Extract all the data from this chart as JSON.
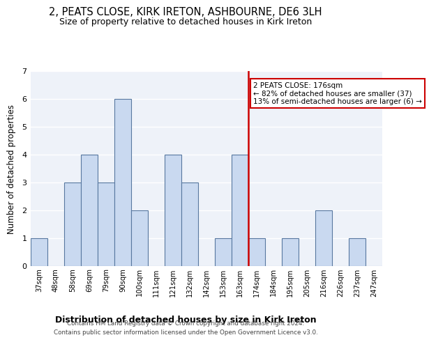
{
  "title": "2, PEATS CLOSE, KIRK IRETON, ASHBOURNE, DE6 3LH",
  "subtitle": "Size of property relative to detached houses in Kirk Ireton",
  "xlabel": "Distribution of detached houses by size in Kirk Ireton",
  "ylabel": "Number of detached properties",
  "bar_labels": [
    "37sqm",
    "48sqm",
    "58sqm",
    "69sqm",
    "79sqm",
    "90sqm",
    "100sqm",
    "111sqm",
    "121sqm",
    "132sqm",
    "142sqm",
    "153sqm",
    "163sqm",
    "174sqm",
    "184sqm",
    "195sqm",
    "205sqm",
    "216sqm",
    "226sqm",
    "237sqm",
    "247sqm"
  ],
  "bar_values": [
    1,
    0,
    3,
    4,
    3,
    6,
    2,
    0,
    4,
    3,
    0,
    1,
    4,
    1,
    0,
    1,
    0,
    2,
    0,
    1,
    0
  ],
  "bar_color": "#c9d9f0",
  "bar_edge_color": "#5878a0",
  "highlight_index": 13,
  "red_line_color": "#cc0000",
  "annotation_text": "2 PEATS CLOSE: 176sqm\n← 82% of detached houses are smaller (37)\n13% of semi-detached houses are larger (6) →",
  "annotation_box_color": "#ffffff",
  "annotation_box_edge": "#cc0000",
  "ylim": [
    0,
    7
  ],
  "yticks": [
    0,
    1,
    2,
    3,
    4,
    5,
    6,
    7
  ],
  "background_color": "#eef2f9",
  "grid_color": "#ffffff",
  "footer_line1": "Contains HM Land Registry data © Crown copyright and database right 2024.",
  "footer_line2": "Contains public sector information licensed under the Open Government Licence v3.0."
}
